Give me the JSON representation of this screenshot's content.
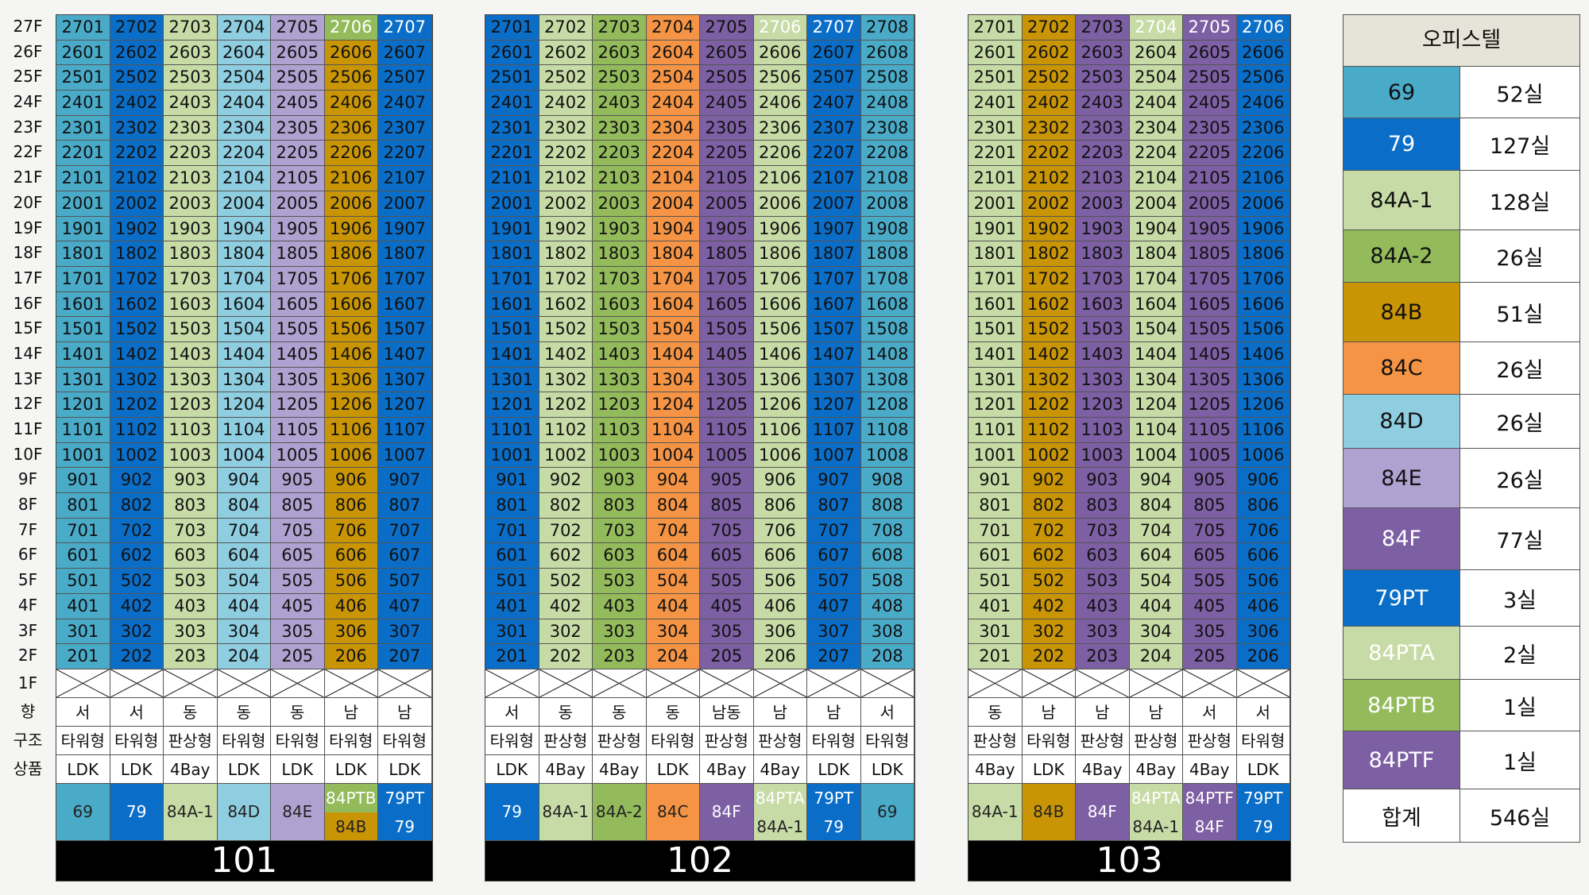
{
  "colors": {
    "69": "#4aabc9",
    "79": "#0a6ec8",
    "84A-1": "#c7dba6",
    "84A-2": "#93bb5b",
    "84B": "#c99505",
    "84C": "#f49444",
    "84D": "#8fcde0",
    "84E": "#b0a2d0",
    "84F": "#7d5fa3",
    "79PT": "#0a6ec8",
    "84PTA": "#c7dba6",
    "84PTB": "#93bb5b",
    "84PTF": "#7d5fa3"
  },
  "floors": [
    "27F",
    "26F",
    "25F",
    "24F",
    "23F",
    "22F",
    "21F",
    "20F",
    "19F",
    "18F",
    "17F",
    "16F",
    "15F",
    "14F",
    "13F",
    "12F",
    "11F",
    "10F",
    "9F",
    "8F",
    "7F",
    "6F",
    "5F",
    "4F",
    "3F",
    "2F",
    "1F"
  ],
  "row_labels": {
    "direction": "향",
    "structure": "구조",
    "product": "상품"
  },
  "buildings": [
    {
      "name": "101",
      "columns": [
        {
          "type": "69",
          "direction": "서",
          "structure": "타워형",
          "product": "LDK",
          "types_label": "69",
          "top": {
            "unit": "2701",
            "type": "69"
          }
        },
        {
          "type": "79",
          "direction": "서",
          "structure": "타워형",
          "product": "LDK",
          "types_label": "79",
          "top": {
            "unit": "2702",
            "type": "79"
          }
        },
        {
          "type": "84A-1",
          "direction": "동",
          "structure": "판상형",
          "product": "4Bay",
          "types_label": "84A-1",
          "top": {
            "unit": "2703",
            "type": "84A-1"
          }
        },
        {
          "type": "84D",
          "direction": "동",
          "structure": "타워형",
          "product": "LDK",
          "types_label": "84D",
          "top": {
            "unit": "2704",
            "type": "84D"
          }
        },
        {
          "type": "84E",
          "direction": "동",
          "structure": "타워형",
          "product": "LDK",
          "types_label": "84E",
          "top": {
            "unit": "2705",
            "type": "84E"
          }
        },
        {
          "type": "84B",
          "direction": "남",
          "structure": "타워형",
          "product": "LDK",
          "types_top": "84PTB",
          "types_bottom": "84B",
          "top": {
            "unit": "2706",
            "type": "84PTB"
          }
        },
        {
          "type": "79",
          "direction": "남",
          "structure": "타워형",
          "product": "LDK",
          "types_top": "79PT",
          "types_bottom": "79",
          "top": {
            "unit": "2707",
            "type": "79PT"
          }
        }
      ]
    },
    {
      "name": "102",
      "columns": [
        {
          "type": "79",
          "direction": "서",
          "structure": "타워형",
          "product": "LDK",
          "types_label": "79",
          "top": {
            "unit": "2701",
            "type": "79"
          }
        },
        {
          "type": "84A-1",
          "direction": "동",
          "structure": "판상형",
          "product": "4Bay",
          "types_label": "84A-1",
          "top": {
            "unit": "2702",
            "type": "84A-1"
          }
        },
        {
          "type": "84A-2",
          "direction": "동",
          "structure": "판상형",
          "product": "4Bay",
          "types_label": "84A-2",
          "top": {
            "unit": "2703",
            "type": "84A-2"
          }
        },
        {
          "type": "84C",
          "direction": "동",
          "structure": "타워형",
          "product": "LDK",
          "types_label": "84C",
          "top": {
            "unit": "2704",
            "type": "84C"
          }
        },
        {
          "type": "84F",
          "direction": "남동",
          "structure": "판상형",
          "product": "4Bay",
          "types_label": "84F",
          "top": {
            "unit": "2705",
            "type": "84F"
          }
        },
        {
          "type": "84A-1",
          "direction": "남",
          "structure": "판상형",
          "product": "4Bay",
          "types_top": "84PTA",
          "types_bottom": "84A-1",
          "top": {
            "unit": "2706",
            "type": "84PTA"
          }
        },
        {
          "type": "79",
          "direction": "남",
          "structure": "타워형",
          "product": "LDK",
          "types_top": "79PT",
          "types_bottom": "79",
          "top": {
            "unit": "2707",
            "type": "79PT"
          }
        },
        {
          "type": "69",
          "direction": "서",
          "structure": "타워형",
          "product": "LDK",
          "types_label": "69",
          "top": {
            "unit": "2708",
            "type": "69"
          }
        }
      ]
    },
    {
      "name": "103",
      "columns": [
        {
          "type": "84A-1",
          "direction": "동",
          "structure": "판상형",
          "product": "4Bay",
          "types_label": "84A-1",
          "top": {
            "unit": "2701",
            "type": "84A-1"
          }
        },
        {
          "type": "84B",
          "direction": "남",
          "structure": "타워형",
          "product": "LDK",
          "types_label": "84B",
          "top": {
            "unit": "2702",
            "type": "84B"
          }
        },
        {
          "type": "84F",
          "direction": "남",
          "structure": "판상형",
          "product": "4Bay",
          "types_label": "84F",
          "top": {
            "unit": "2703",
            "type": "84F"
          }
        },
        {
          "type": "84A-1",
          "direction": "남",
          "structure": "판상형",
          "product": "4Bay",
          "types_top": "84PTA",
          "types_bottom": "84A-1",
          "top": {
            "unit": "2704",
            "type": "84PTA"
          }
        },
        {
          "type": "84F",
          "direction": "서",
          "structure": "판상형",
          "product": "4Bay",
          "types_top": "84PTF",
          "types_bottom": "84F",
          "top": {
            "unit": "2705",
            "type": "84PTF"
          }
        },
        {
          "type": "79",
          "direction": "서",
          "structure": "타워형",
          "product": "LDK",
          "types_top": "79PT",
          "types_bottom": "79",
          "top": {
            "unit": "2706",
            "type": "79PT"
          }
        }
      ]
    }
  ],
  "legend": {
    "title": "오피스텔",
    "rows": [
      {
        "type": "69",
        "count": "52실"
      },
      {
        "type": "79",
        "count": "127실"
      },
      {
        "type": "84A-1",
        "count": "128실"
      },
      {
        "type": "84A-2",
        "count": "26실"
      },
      {
        "type": "84B",
        "count": "51실"
      },
      {
        "type": "84C",
        "count": "26실"
      },
      {
        "type": "84D",
        "count": "26실"
      },
      {
        "type": "84E",
        "count": "26실"
      },
      {
        "type": "84F",
        "count": "77실"
      },
      {
        "type": "79PT",
        "count": "3실"
      },
      {
        "type": "84PTA",
        "count": "2실"
      },
      {
        "type": "84PTB",
        "count": "1실"
      },
      {
        "type": "84PTF",
        "count": "1실"
      },
      {
        "type": "",
        "count": "546실",
        "label": "합계"
      }
    ]
  }
}
